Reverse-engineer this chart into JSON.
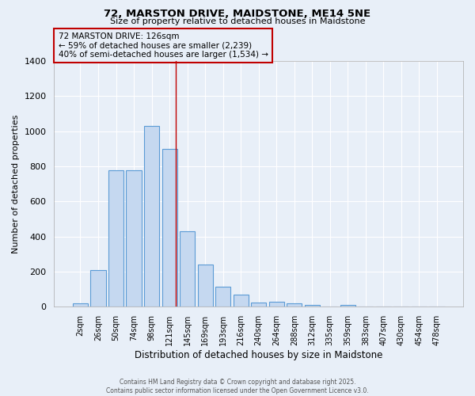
{
  "title1": "72, MARSTON DRIVE, MAIDSTONE, ME14 5NE",
  "title2": "Size of property relative to detached houses in Maidstone",
  "xlabel": "Distribution of detached houses by size in Maidstone",
  "ylabel": "Number of detached properties",
  "categories": [
    "2sqm",
    "26sqm",
    "50sqm",
    "74sqm",
    "98sqm",
    "121sqm",
    "145sqm",
    "169sqm",
    "193sqm",
    "216sqm",
    "240sqm",
    "264sqm",
    "288sqm",
    "312sqm",
    "335sqm",
    "359sqm",
    "383sqm",
    "407sqm",
    "430sqm",
    "454sqm",
    "478sqm"
  ],
  "values": [
    20,
    210,
    780,
    780,
    1030,
    900,
    430,
    240,
    115,
    70,
    25,
    30,
    20,
    10,
    0,
    10,
    0,
    0,
    0,
    0,
    0
  ],
  "bar_color": "#c5d8f0",
  "bar_edge_color": "#5b9bd5",
  "bg_color": "#e8eff8",
  "grid_color": "#ffffff",
  "vline_color": "#c00000",
  "annotation_title": "72 MARSTON DRIVE: 126sqm",
  "annotation_line1": "← 59% of detached houses are smaller (2,239)",
  "annotation_line2": "40% of semi-detached houses are larger (1,534) →",
  "annotation_box_color": "#c00000",
  "footer1": "Contains HM Land Registry data © Crown copyright and database right 2025.",
  "footer2": "Contains public sector information licensed under the Open Government Licence v3.0.",
  "ylim": [
    0,
    1400
  ],
  "yticks": [
    0,
    200,
    400,
    600,
    800,
    1000,
    1200,
    1400
  ]
}
